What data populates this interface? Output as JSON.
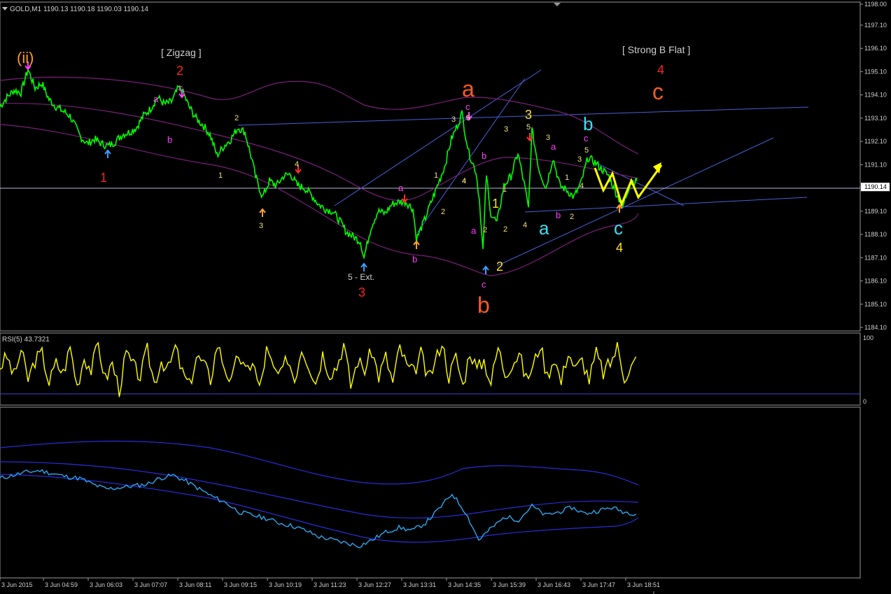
{
  "header": {
    "symbol": "GOLD,M1",
    "ohlc": "1190.13 1190.18 1190.03 1190.14"
  },
  "colors": {
    "background": "#000000",
    "price": "#00ff00",
    "axis": "#c0c0c0",
    "trendline": "#4a5fd6",
    "envelope": "#7a1f7a",
    "rsi": "#ffff00",
    "lower_line": "#2aa8f0",
    "lower_band": "#2b2bd8"
  },
  "chart_data": [
    {
      "type": "line",
      "name": "price-panel",
      "price_axis_labels": [
        "1198.00",
        "1197.10",
        "1196.10",
        "1195.10",
        "1194.10",
        "1193.10",
        "1192.10",
        "1191.10",
        "1190.14",
        "1189.10",
        "1188.10",
        "1187.10",
        "1186.10",
        "1185.10",
        "1184.10"
      ],
      "price_axis_values": [
        1198.0,
        1197.1,
        1196.1,
        1195.1,
        1194.1,
        1193.1,
        1192.1,
        1191.1,
        1190.14,
        1189.1,
        1188.1,
        1187.1,
        1186.1,
        1185.1,
        1184.1
      ],
      "current_price": "1190.14",
      "ylim": [
        1184.0,
        1198.0
      ],
      "time_labels": [
        "3 Jun 2015",
        "3 Jun 04:59",
        "3 Jun 06:03",
        "3 Jun 07:07",
        "3 Jun 08:11",
        "3 Jun 09:15",
        "3 Jun 10:19",
        "3 Jun 11:23",
        "3 Jun 12:27",
        "3 Jun 13:31",
        "3 Jun 14:35",
        "3 Jun 15:39",
        "3 Jun 16:43",
        "3 Jun 17:47",
        "3 Jun 18:51"
      ],
      "x": [
        0,
        10,
        20,
        30,
        40,
        50,
        60,
        70,
        80,
        90,
        100,
        115,
        125,
        135,
        145,
        155,
        165,
        175,
        185,
        195,
        205,
        215,
        225,
        235,
        245,
        255,
        260,
        270,
        280,
        290,
        300,
        310,
        320,
        330,
        340,
        350,
        360,
        365,
        375,
        385,
        395,
        405,
        415,
        425,
        435,
        445,
        455,
        465,
        475,
        485,
        495,
        505,
        515,
        520,
        530,
        540,
        550,
        560,
        570,
        580,
        590,
        595,
        605,
        615,
        625,
        635,
        645,
        655,
        660,
        665,
        670,
        680,
        685,
        690,
        695,
        700,
        710,
        720,
        730,
        740,
        750,
        755,
        760,
        770,
        780,
        790,
        800,
        810,
        820,
        830,
        840,
        850,
        860,
        870,
        880,
        890,
        900,
        910
      ],
      "y": [
        1193.6,
        1194.0,
        1194.3,
        1194.2,
        1195.2,
        1194.4,
        1194.6,
        1193.9,
        1193.6,
        1193.4,
        1193.2,
        1192.3,
        1192.0,
        1192.2,
        1192.0,
        1191.9,
        1192.1,
        1192.4,
        1192.5,
        1192.7,
        1193.2,
        1193.5,
        1194.0,
        1193.7,
        1193.8,
        1194.4,
        1194.3,
        1193.6,
        1193.1,
        1192.8,
        1192.4,
        1191.5,
        1191.9,
        1192.2,
        1192.7,
        1192.5,
        1191.3,
        1190.6,
        1189.7,
        1190.4,
        1190.2,
        1190.6,
        1190.7,
        1190.2,
        1190.1,
        1189.8,
        1189.4,
        1189.2,
        1189.1,
        1188.7,
        1188.2,
        1188.0,
        1187.8,
        1187.1,
        1188.4,
        1189.1,
        1189.0,
        1189.4,
        1189.5,
        1189.5,
        1189.2,
        1187.9,
        1188.6,
        1189.4,
        1190.2,
        1191.0,
        1192.2,
        1192.9,
        1193.3,
        1192.4,
        1191.6,
        1190.8,
        1189.6,
        1187.4,
        1190.7,
        1189.1,
        1188.6,
        1190.2,
        1190.6,
        1191.6,
        1190.1,
        1189.2,
        1192.6,
        1190.9,
        1190.1,
        1191.4,
        1190.2,
        1190.0,
        1189.7,
        1190.3,
        1191.4,
        1191.2,
        1190.9,
        1190.6,
        1189.9,
        1189.3,
        1190.3,
        1190.4
      ]
    },
    {
      "type": "line",
      "name": "rsi-panel",
      "title": "RSI(5) 43.7321",
      "ylim": [
        0,
        100
      ],
      "axis_labels": [
        "100",
        "0"
      ],
      "series": [
        {
          "values": [
            55,
            70,
            40,
            80,
            35,
            65,
            75,
            30,
            60,
            45,
            85,
            25,
            70,
            50,
            90,
            35,
            60,
            20,
            75,
            55,
            40,
            80,
            30,
            65,
            50,
            85,
            45,
            25,
            70,
            60,
            35,
            90,
            55,
            30,
            75,
            45,
            65,
            20,
            80,
            50,
            40,
            70,
            35,
            85,
            60,
            30,
            75,
            45,
            55,
            90,
            25,
            65,
            50,
            80,
            40,
            70,
            30,
            85,
            55,
            45,
            75,
            35,
            60,
            95,
            40,
            70,
            25,
            80,
            50,
            65,
            30,
            85,
            45,
            60,
            75,
            35,
            55,
            90,
            40,
            70,
            30,
            80,
            50,
            65,
            35,
            75,
            45,
            60,
            85,
            40,
            55,
            70
          ]
        }
      ]
    },
    {
      "type": "line",
      "name": "lower-panel",
      "series": [
        {
          "values": [
            0.62,
            0.64,
            0.66,
            0.67,
            0.65,
            0.63,
            0.62,
            0.58,
            0.55,
            0.56,
            0.57,
            0.58,
            0.62,
            0.64,
            0.6,
            0.55,
            0.5,
            0.46,
            0.4,
            0.38,
            0.36,
            0.33,
            0.31,
            0.28,
            0.24,
            0.22,
            0.2,
            0.18,
            0.22,
            0.27,
            0.3,
            0.28,
            0.33,
            0.42,
            0.52,
            0.4,
            0.22,
            0.3,
            0.37,
            0.35,
            0.44,
            0.38,
            0.4,
            0.43,
            0.39,
            0.41,
            0.43,
            0.4,
            0.39
          ]
        }
      ]
    }
  ],
  "annotations": {
    "top_wave_ii": "(ii)",
    "zigzag_label": "[ Zigzag ]",
    "strong_b_flat_label": "[ Strong B Flat ]",
    "red_1": "1",
    "red_2": "2",
    "red_3": "3",
    "red_4": "4",
    "orange_a": "a",
    "orange_b": "b",
    "orange_c": "c",
    "ext_label": "5 - Ext.",
    "cyan_a": "a",
    "cyan_b": "b",
    "cyan_c": "c",
    "yellow_1": "1",
    "yellow_2": "2",
    "yellow_3": "3",
    "yellow_4": "4",
    "magenta": [
      "a",
      "c",
      "b",
      "a",
      "b",
      "c",
      "b",
      "a",
      "c",
      "a",
      "b",
      "c"
    ],
    "small": [
      "2",
      "1",
      "4",
      "3",
      "5",
      "1",
      "2",
      "3",
      "4",
      "3",
      "5",
      "4",
      "1",
      "2",
      "3",
      "5",
      "4",
      "3",
      "4",
      "2",
      "1",
      "2"
    ]
  }
}
